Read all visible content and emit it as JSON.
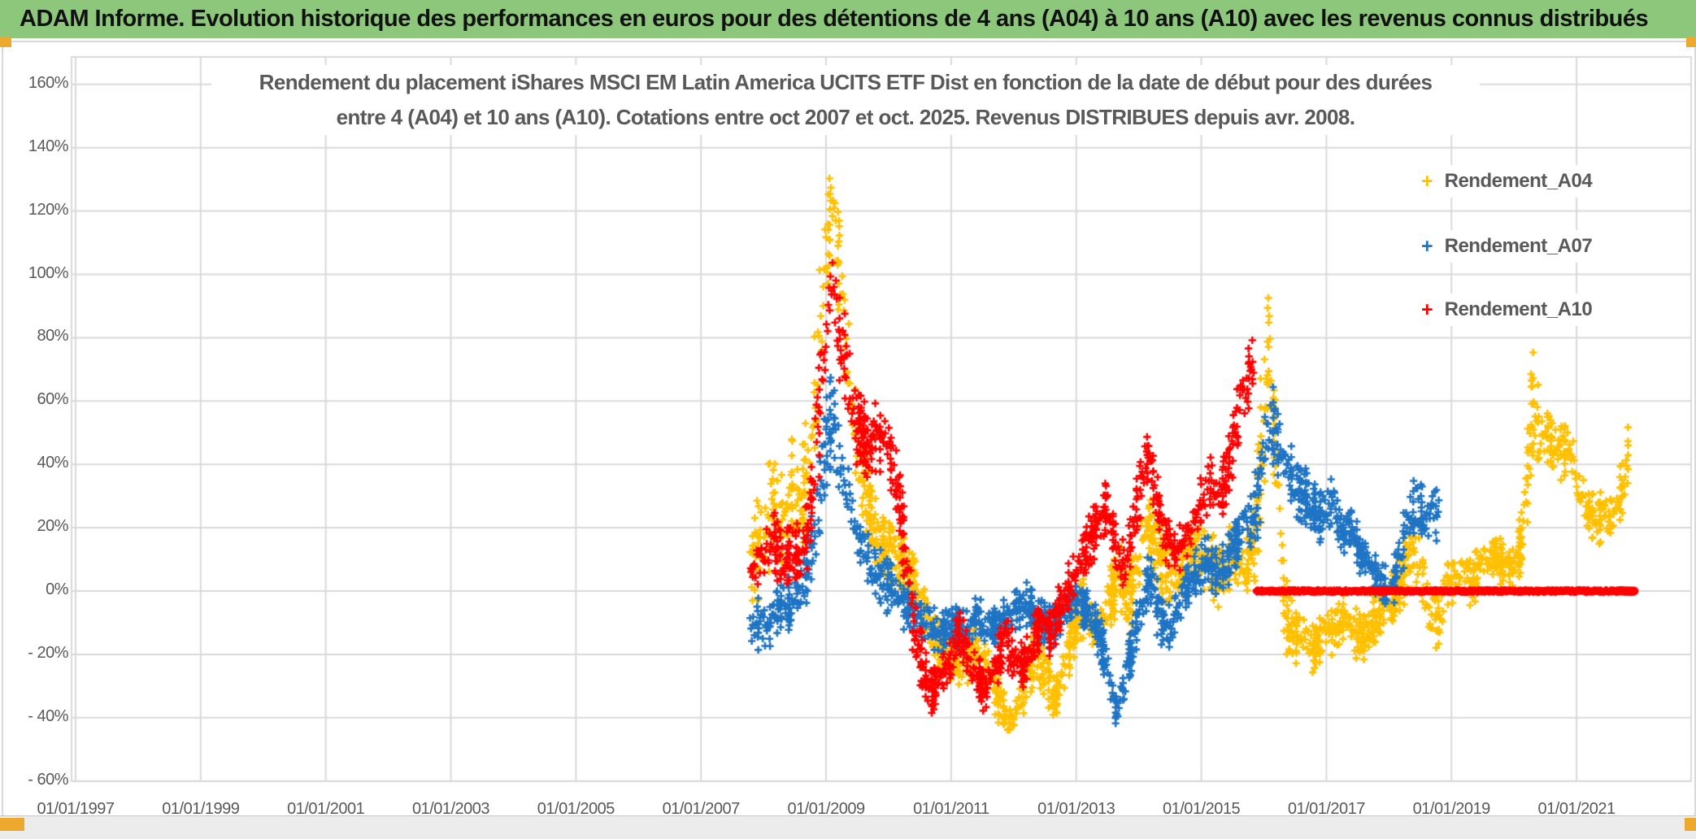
{
  "banner": {
    "title": "ADAM Informe. Evolution historique des performances en euros pour des détentions de 4 ans (A04) à 10 ans (A10) avec les revenus connus distribués",
    "background": "#8CC77C"
  },
  "chart_data": {
    "type": "scatter",
    "title_line1": "Rendement du placement iShares MSCI EM Latin America UCITS ETF Dist en fonction de la date de début pour des durées",
    "title_line2": "entre 4 (A04) et 10 ans (A10). Cotations entre oct 2007 et oct. 2025. Revenus DISTRIBUES depuis avr. 2008.",
    "marker": "+",
    "gridline_color": "#D9D9D9",
    "text_color": "#595959",
    "x_axis": {
      "tick_labels": [
        "01/01/1997",
        "01/01/1999",
        "01/01/2001",
        "01/01/2003",
        "01/01/2005",
        "01/01/2007",
        "01/01/2009",
        "01/01/2011",
        "01/01/2013",
        "01/01/2015",
        "01/01/2017",
        "01/01/2019",
        "01/01/2021"
      ],
      "tick_years": [
        1997,
        1999,
        2001,
        2003,
        2005,
        2007,
        2009,
        2011,
        2013,
        2015,
        2017,
        2019,
        2021
      ],
      "range_years": [
        1996.92,
        2022.9
      ]
    },
    "y_axis": {
      "tick_labels": [
        "160%",
        "140%",
        "120%",
        "100%",
        "80%",
        "60%",
        "40%",
        "20%",
        "0%",
        "- 20%",
        "- 40%",
        "- 60%"
      ],
      "tick_values": [
        160,
        140,
        120,
        100,
        80,
        60,
        40,
        20,
        0,
        -20,
        -40,
        -60
      ],
      "range": [
        -60,
        160
      ],
      "format": "percent"
    },
    "legend": [
      {
        "label": "Rendement_A04",
        "color": "#FFC000"
      },
      {
        "label": "Rendement_A07",
        "color": "#1F74C4"
      },
      {
        "label": "Rendement_A10",
        "color": "#FF0000"
      }
    ],
    "series": [
      {
        "name": "Rendement_A04",
        "color": "#FFC000",
        "start": 2007.79,
        "end": 2021.82,
        "envelope": [
          [
            2007.79,
            8,
            14
          ],
          [
            2008.0,
            15,
            16
          ],
          [
            2008.15,
            30,
            15
          ],
          [
            2008.3,
            20,
            14
          ],
          [
            2008.45,
            32,
            14
          ],
          [
            2008.6,
            28,
            12
          ],
          [
            2008.75,
            45,
            20
          ],
          [
            2008.9,
            85,
            25
          ],
          [
            2009.0,
            110,
            20
          ],
          [
            2009.08,
            120,
            14
          ],
          [
            2009.2,
            105,
            18
          ],
          [
            2009.35,
            75,
            18
          ],
          [
            2009.5,
            45,
            14
          ],
          [
            2009.65,
            30,
            12
          ],
          [
            2009.8,
            18,
            10
          ],
          [
            2010.0,
            12,
            10
          ],
          [
            2010.2,
            8,
            9
          ],
          [
            2010.4,
            2,
            8
          ],
          [
            2010.6,
            -8,
            8
          ],
          [
            2010.8,
            -18,
            8
          ],
          [
            2011.0,
            -20,
            8
          ],
          [
            2011.2,
            -24,
            7
          ],
          [
            2011.4,
            -18,
            8
          ],
          [
            2011.6,
            -25,
            8
          ],
          [
            2011.75,
            -33,
            7
          ],
          [
            2011.92,
            -41,
            5
          ],
          [
            2012.05,
            -37,
            6
          ],
          [
            2012.2,
            -28,
            8
          ],
          [
            2012.35,
            -18,
            8
          ],
          [
            2012.5,
            -25,
            8
          ],
          [
            2012.65,
            -35,
            6
          ],
          [
            2012.8,
            -27,
            8
          ],
          [
            2012.95,
            -12,
            8
          ],
          [
            2013.1,
            -5,
            8
          ],
          [
            2013.3,
            -12,
            8
          ],
          [
            2013.5,
            -3,
            9
          ],
          [
            2013.7,
            5,
            9
          ],
          [
            2013.85,
            -4,
            9
          ],
          [
            2014.0,
            10,
            11
          ],
          [
            2014.15,
            22,
            11
          ],
          [
            2014.3,
            12,
            10
          ],
          [
            2014.5,
            5,
            9
          ],
          [
            2014.7,
            8,
            9
          ],
          [
            2014.9,
            14,
            9
          ],
          [
            2015.1,
            10,
            9
          ],
          [
            2015.3,
            5,
            9
          ],
          [
            2015.5,
            12,
            9
          ],
          [
            2015.7,
            6,
            9
          ],
          [
            2015.85,
            16,
            12
          ],
          [
            2016.0,
            55,
            28
          ],
          [
            2016.08,
            80,
            13
          ],
          [
            2016.2,
            40,
            18
          ],
          [
            2016.35,
            -8,
            11
          ],
          [
            2016.5,
            -14,
            8
          ],
          [
            2016.65,
            -10,
            8
          ],
          [
            2016.8,
            -19,
            7
          ],
          [
            2016.95,
            -12,
            8
          ],
          [
            2017.1,
            -13,
            7
          ],
          [
            2017.25,
            -8,
            7
          ],
          [
            2017.4,
            -12,
            7
          ],
          [
            2017.55,
            -15,
            7
          ],
          [
            2017.7,
            -11,
            7
          ],
          [
            2017.85,
            -6,
            7
          ],
          [
            2018.0,
            -3,
            7
          ],
          [
            2018.2,
            3,
            8
          ],
          [
            2018.35,
            12,
            10
          ],
          [
            2018.5,
            8,
            10
          ],
          [
            2018.65,
            -7,
            8
          ],
          [
            2018.8,
            -9,
            8
          ],
          [
            2018.95,
            2,
            7
          ],
          [
            2019.1,
            6,
            7
          ],
          [
            2019.3,
            3,
            7
          ],
          [
            2019.5,
            8,
            7
          ],
          [
            2019.7,
            12,
            6
          ],
          [
            2019.85,
            8,
            7
          ],
          [
            2020.0,
            7,
            7
          ],
          [
            2020.12,
            16,
            8
          ],
          [
            2020.22,
            35,
            14
          ],
          [
            2020.3,
            60,
            17
          ],
          [
            2020.42,
            48,
            10
          ],
          [
            2020.55,
            50,
            9
          ],
          [
            2020.7,
            44,
            9
          ],
          [
            2020.85,
            47,
            9
          ],
          [
            2021.0,
            35,
            9
          ],
          [
            2021.15,
            28,
            8
          ],
          [
            2021.3,
            22,
            7
          ],
          [
            2021.45,
            25,
            8
          ],
          [
            2021.6,
            23,
            8
          ],
          [
            2021.72,
            32,
            8
          ],
          [
            2021.82,
            43,
            8
          ]
        ]
      },
      {
        "name": "Rendement_A07",
        "color": "#1F74C4",
        "start": 2007.79,
        "end": 2018.8,
        "envelope": [
          [
            2007.79,
            -10,
            8
          ],
          [
            2008.0,
            -12,
            8
          ],
          [
            2008.2,
            -8,
            8
          ],
          [
            2008.4,
            -4,
            8
          ],
          [
            2008.6,
            2,
            8
          ],
          [
            2008.75,
            10,
            10
          ],
          [
            2008.9,
            30,
            14
          ],
          [
            2009.0,
            48,
            13
          ],
          [
            2009.1,
            55,
            13
          ],
          [
            2009.2,
            45,
            12
          ],
          [
            2009.35,
            30,
            10
          ],
          [
            2009.5,
            18,
            8
          ],
          [
            2009.65,
            10,
            8
          ],
          [
            2009.8,
            5,
            8
          ],
          [
            2010.0,
            2,
            8
          ],
          [
            2010.2,
            -2,
            8
          ],
          [
            2010.4,
            -6,
            7
          ],
          [
            2010.6,
            -10,
            7
          ],
          [
            2010.8,
            -14,
            6
          ],
          [
            2011.0,
            -11,
            6
          ],
          [
            2011.2,
            -13,
            6
          ],
          [
            2011.4,
            -8,
            6
          ],
          [
            2011.6,
            -12,
            6
          ],
          [
            2011.8,
            -9,
            6
          ],
          [
            2012.0,
            -6,
            6
          ],
          [
            2012.2,
            -4,
            6
          ],
          [
            2012.4,
            -8,
            6
          ],
          [
            2012.6,
            -12,
            6
          ],
          [
            2012.8,
            -6,
            6
          ],
          [
            2013.0,
            -2,
            6
          ],
          [
            2013.15,
            -5,
            6
          ],
          [
            2013.3,
            -10,
            6
          ],
          [
            2013.45,
            -20,
            7
          ],
          [
            2013.55,
            -31,
            7
          ],
          [
            2013.65,
            -38,
            5
          ],
          [
            2013.78,
            -28,
            6
          ],
          [
            2013.9,
            -16,
            7
          ],
          [
            2014.05,
            -4,
            8
          ],
          [
            2014.18,
            5,
            7
          ],
          [
            2014.3,
            -5,
            8
          ],
          [
            2014.45,
            -12,
            7
          ],
          [
            2014.6,
            -6,
            7
          ],
          [
            2014.75,
            0,
            7
          ],
          [
            2014.9,
            5,
            7
          ],
          [
            2015.1,
            10,
            8
          ],
          [
            2015.3,
            6,
            8
          ],
          [
            2015.5,
            14,
            8
          ],
          [
            2015.7,
            20,
            9
          ],
          [
            2015.9,
            28,
            10
          ],
          [
            2016.0,
            42,
            12
          ],
          [
            2016.1,
            55,
            11
          ],
          [
            2016.25,
            47,
            10
          ],
          [
            2016.4,
            38,
            9
          ],
          [
            2016.55,
            32,
            8
          ],
          [
            2016.7,
            30,
            8
          ],
          [
            2016.85,
            24,
            8
          ],
          [
            2017.0,
            26,
            8
          ],
          [
            2017.12,
            28,
            7
          ],
          [
            2017.25,
            18,
            7
          ],
          [
            2017.4,
            21,
            6
          ],
          [
            2017.55,
            12,
            6
          ],
          [
            2017.7,
            8,
            6
          ],
          [
            2017.85,
            3,
            6
          ],
          [
            2018.0,
            0,
            6
          ],
          [
            2018.15,
            7,
            8
          ],
          [
            2018.3,
            22,
            9
          ],
          [
            2018.45,
            28,
            9
          ],
          [
            2018.6,
            20,
            8
          ],
          [
            2018.7,
            26,
            7
          ],
          [
            2018.8,
            23,
            8
          ]
        ]
      },
      {
        "name": "Rendement_A10",
        "color": "#FF0000",
        "start": 2007.79,
        "end": 2015.83,
        "envelope": [
          [
            2007.79,
            6,
            8
          ],
          [
            2008.0,
            10,
            8
          ],
          [
            2008.15,
            18,
            9
          ],
          [
            2008.3,
            8,
            9
          ],
          [
            2008.45,
            14,
            9
          ],
          [
            2008.6,
            10,
            9
          ],
          [
            2008.75,
            25,
            12
          ],
          [
            2008.9,
            60,
            20
          ],
          [
            2009.0,
            85,
            17
          ],
          [
            2009.1,
            95,
            15
          ],
          [
            2009.2,
            85,
            15
          ],
          [
            2009.35,
            65,
            14
          ],
          [
            2009.5,
            52,
            12
          ],
          [
            2009.65,
            46,
            10
          ],
          [
            2009.8,
            48,
            10
          ],
          [
            2009.92,
            50,
            10
          ],
          [
            2010.1,
            38,
            10
          ],
          [
            2010.25,
            15,
            10
          ],
          [
            2010.4,
            -10,
            10
          ],
          [
            2010.55,
            -25,
            8
          ],
          [
            2010.7,
            -31,
            7
          ],
          [
            2010.85,
            -27,
            7
          ],
          [
            2011.0,
            -22,
            7
          ],
          [
            2011.12,
            -11,
            8
          ],
          [
            2011.25,
            -18,
            8
          ],
          [
            2011.4,
            -27,
            7
          ],
          [
            2011.55,
            -32,
            6
          ],
          [
            2011.7,
            -25,
            7
          ],
          [
            2011.85,
            -15,
            8
          ],
          [
            2012.0,
            -20,
            8
          ],
          [
            2012.15,
            -24,
            7
          ],
          [
            2012.3,
            -17,
            7
          ],
          [
            2012.45,
            -8,
            7
          ],
          [
            2012.6,
            -13,
            7
          ],
          [
            2012.75,
            -5,
            7
          ],
          [
            2012.9,
            2,
            7
          ],
          [
            2013.05,
            8,
            8
          ],
          [
            2013.2,
            15,
            8
          ],
          [
            2013.35,
            22,
            8
          ],
          [
            2013.5,
            27,
            7
          ],
          [
            2013.65,
            12,
            8
          ],
          [
            2013.8,
            9,
            8
          ],
          [
            2013.95,
            25,
            10
          ],
          [
            2014.1,
            40,
            8
          ],
          [
            2014.17,
            43,
            6
          ],
          [
            2014.28,
            30,
            8
          ],
          [
            2014.4,
            18,
            8
          ],
          [
            2014.55,
            12,
            7
          ],
          [
            2014.7,
            15,
            7
          ],
          [
            2014.85,
            20,
            8
          ],
          [
            2015.0,
            28,
            8
          ],
          [
            2015.15,
            34,
            8
          ],
          [
            2015.3,
            30,
            8
          ],
          [
            2015.45,
            42,
            9
          ],
          [
            2015.6,
            55,
            10
          ],
          [
            2015.72,
            66,
            10
          ],
          [
            2015.83,
            72,
            8
          ]
        ],
        "zero_segment": {
          "from": 2015.88,
          "to": 2021.92,
          "value": 0
        }
      }
    ]
  }
}
